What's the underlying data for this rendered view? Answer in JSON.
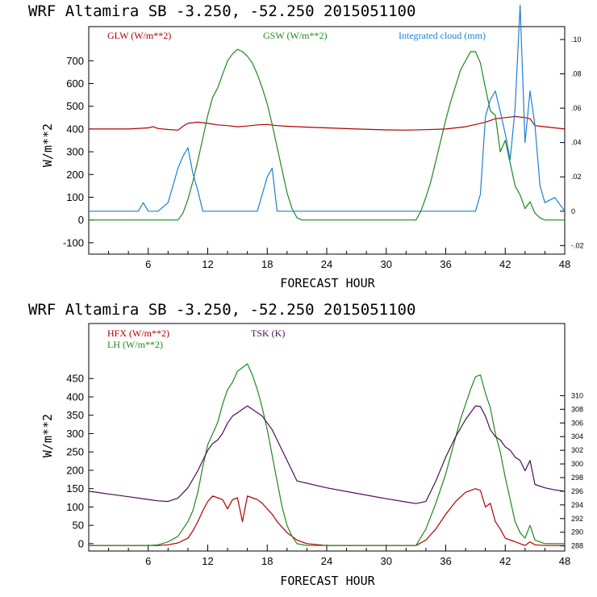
{
  "chart_data": [
    {
      "type": "line",
      "title": "WRF   Altamira  SB  -3.250, -52.250  2015051100",
      "xlabel": "FORECAST HOUR",
      "ylabel": "W/m**2",
      "xlim": [
        0,
        48
      ],
      "xticks": [
        6,
        12,
        18,
        24,
        30,
        36,
        42,
        48
      ],
      "ylim": [
        -150,
        850
      ],
      "yticks": [
        -100,
        0,
        100,
        200,
        300,
        400,
        500,
        600,
        700
      ],
      "right_axis": {
        "ylim": [
          -0.025,
          0.1075
        ],
        "ticks": [
          -0.02,
          0,
          0.02,
          0.04,
          0.06,
          0.08,
          0.1
        ],
        "tick_labels": [
          "-.02",
          "0",
          ".02",
          ".04",
          ".06",
          ".08",
          ".10"
        ]
      },
      "series": [
        {
          "name": "GLW (W/m**2)",
          "color": "#b00000",
          "axis": "left",
          "x": [
            0,
            4,
            6,
            6.5,
            7,
            8,
            9,
            9.5,
            10,
            11,
            12,
            13,
            14,
            15,
            16,
            17,
            18,
            19,
            20,
            22,
            24,
            27,
            30,
            32,
            34,
            36,
            37,
            38,
            39,
            40,
            41,
            42,
            43,
            44,
            44.5,
            45,
            46,
            47,
            48
          ],
          "y": [
            400,
            400,
            405,
            410,
            402,
            398,
            395,
            412,
            425,
            430,
            425,
            418,
            415,
            410,
            413,
            418,
            420,
            415,
            412,
            408,
            405,
            400,
            396,
            395,
            397,
            400,
            405,
            410,
            420,
            430,
            445,
            450,
            455,
            450,
            445,
            415,
            410,
            405,
            400
          ]
        },
        {
          "name": "GSW (W/m**2)",
          "color": "#20891e",
          "axis": "left",
          "x": [
            0,
            9,
            9.5,
            10,
            10.5,
            11,
            11.5,
            12,
            12.5,
            13,
            13.5,
            14,
            14.5,
            15,
            15.5,
            16,
            16.5,
            17,
            17.5,
            18,
            18.5,
            19,
            19.5,
            20,
            20.5,
            21,
            21.5,
            24,
            30,
            33,
            33.5,
            34,
            34.5,
            35,
            35.5,
            36,
            36.5,
            37,
            37.5,
            38,
            38.5,
            39,
            39.5,
            40,
            40.5,
            41,
            41.5,
            42,
            42.5,
            43,
            43.5,
            44,
            44.5,
            45,
            45.5,
            46,
            48
          ],
          "y": [
            0,
            0,
            30,
            90,
            170,
            260,
            360,
            460,
            540,
            580,
            640,
            700,
            730,
            750,
            740,
            720,
            690,
            640,
            580,
            510,
            420,
            320,
            220,
            120,
            50,
            10,
            0,
            0,
            0,
            0,
            40,
            100,
            170,
            260,
            350,
            440,
            520,
            590,
            660,
            700,
            740,
            740,
            690,
            580,
            480,
            460,
            300,
            350,
            250,
            150,
            110,
            50,
            80,
            30,
            10,
            0,
            0
          ]
        },
        {
          "name": "Integrated cloud (mm)",
          "color": "#1e80d6",
          "axis": "right",
          "x": [
            0,
            4,
            5,
            5.5,
            6,
            7,
            8,
            8.5,
            9,
            9.5,
            10,
            10.5,
            11,
            11.5,
            12,
            14,
            16,
            17,
            18,
            18.5,
            19,
            20,
            25,
            30,
            35,
            38,
            39,
            39.5,
            40,
            40.5,
            41,
            41.5,
            42,
            42.5,
            43,
            43.5,
            44,
            44.5,
            45,
            45.5,
            46,
            47,
            48
          ],
          "y": [
            0,
            0,
            0,
            0.005,
            0,
            0,
            0.005,
            0.015,
            0.025,
            0.032,
            0.037,
            0.022,
            0.012,
            0,
            0,
            0,
            0,
            0,
            0.02,
            0.025,
            0,
            0,
            0,
            0,
            0,
            0,
            0,
            0.01,
            0.055,
            0.065,
            0.07,
            0.058,
            0.045,
            0.03,
            0.06,
            0.12,
            0.04,
            0.07,
            0.05,
            0.015,
            0.005,
            0.008,
            0
          ]
        }
      ],
      "legend": [
        "GLW (W/m**2)",
        "GSW (W/m**2)",
        "Integrated cloud (mm)"
      ]
    },
    {
      "type": "line",
      "title": "WRF   Altamira  SB  -3.250, -52.250  2015051100",
      "xlabel": "FORECAST HOUR",
      "ylabel": "W/m**2",
      "xlim": [
        0,
        48
      ],
      "xticks": [
        6,
        12,
        18,
        24,
        30,
        36,
        42,
        48
      ],
      "ylim": [
        -20,
        600
      ],
      "yticks": [
        0,
        50,
        100,
        150,
        200,
        250,
        300,
        350,
        400,
        450
      ],
      "right_axis": {
        "ylim": [
          287.25,
          320.56
        ],
        "ticks": [
          288,
          290,
          292,
          294,
          296,
          298,
          300,
          302,
          304,
          306,
          308,
          310
        ],
        "tick_labels": [
          "288",
          "290",
          "292",
          "294",
          "296",
          "298",
          "300",
          "302",
          "304",
          "306",
          "308",
          "310"
        ]
      },
      "series": [
        {
          "name": "HFX (W/m**2)",
          "color": "#b00000",
          "axis": "left",
          "x": [
            0,
            7,
            8,
            9,
            10,
            10.5,
            11,
            11.5,
            12,
            12.5,
            13,
            13.5,
            14,
            14.5,
            15,
            15.5,
            16,
            16.5,
            17,
            17.5,
            18,
            18.5,
            19,
            20,
            21,
            22,
            24,
            30,
            33,
            34,
            35,
            36,
            37,
            38,
            39,
            39.5,
            40,
            40.5,
            41,
            41.5,
            42,
            43,
            44,
            44.5,
            45,
            46,
            48
          ],
          "y": [
            -5,
            -5,
            -3,
            2,
            15,
            35,
            60,
            90,
            115,
            130,
            125,
            120,
            95,
            120,
            125,
            60,
            130,
            125,
            120,
            110,
            95,
            80,
            60,
            30,
            10,
            0,
            -5,
            -5,
            -5,
            10,
            40,
            80,
            115,
            140,
            150,
            145,
            100,
            110,
            60,
            40,
            15,
            5,
            -5,
            5,
            -3,
            -5,
            -5
          ]
        },
        {
          "name": "LH (W/m**2)",
          "color": "#20891e",
          "axis": "left",
          "x": [
            0,
            6,
            7,
            8,
            9,
            10,
            10.5,
            11,
            11.5,
            12,
            12.5,
            13,
            13.5,
            14,
            14.5,
            15,
            15.5,
            16,
            16.5,
            17,
            17.5,
            18,
            18.5,
            19,
            19.5,
            20,
            20.5,
            21,
            22,
            24,
            30,
            33,
            34,
            35,
            36,
            36.5,
            37,
            37.5,
            38,
            38.5,
            39,
            39.5,
            40,
            40.5,
            41,
            41.5,
            42,
            42.5,
            43,
            43.5,
            44,
            44.5,
            45,
            46,
            48
          ],
          "y": [
            -5,
            -5,
            -3,
            5,
            20,
            60,
            90,
            140,
            210,
            270,
            300,
            330,
            380,
            420,
            440,
            470,
            480,
            490,
            460,
            420,
            370,
            310,
            240,
            170,
            100,
            50,
            20,
            0,
            -5,
            -5,
            -5,
            -5,
            40,
            110,
            190,
            240,
            290,
            340,
            380,
            420,
            455,
            460,
            410,
            370,
            300,
            250,
            180,
            120,
            60,
            30,
            15,
            50,
            10,
            0,
            0
          ]
        },
        {
          "name": "TSK (K)",
          "color": "#4b0d58",
          "axis": "right",
          "x": [
            0,
            2,
            4,
            6,
            7,
            8,
            9,
            10,
            11,
            12,
            12.5,
            13,
            13.5,
            14,
            14.5,
            15,
            15.5,
            16,
            16.5,
            17,
            17.5,
            18,
            18.5,
            19,
            19.5,
            20,
            20.5,
            21,
            24,
            27,
            30,
            33,
            34,
            35,
            36,
            37,
            38,
            39,
            39.5,
            40,
            40.5,
            41,
            41.5,
            42,
            42.5,
            43,
            43.5,
            44,
            44.5,
            45,
            46,
            47,
            48
          ],
          "y": [
            296,
            295.6,
            295.2,
            294.8,
            294.6,
            294.5,
            295,
            296.5,
            299,
            302,
            303,
            303.5,
            304.5,
            306,
            307,
            307.5,
            308,
            308.5,
            308,
            307.5,
            307,
            306,
            305,
            303.5,
            302,
            300.5,
            299,
            297.5,
            296.5,
            295.7,
            294.9,
            294.2,
            294.5,
            297.5,
            301,
            304,
            306.5,
            308.5,
            308.4,
            307,
            305,
            304,
            303.5,
            302.5,
            302,
            301,
            300.5,
            299,
            300.5,
            297,
            296.5,
            296.2,
            296
          ]
        }
      ],
      "legend": [
        "HFX (W/m**2)",
        "LH (W/m**2)",
        "TSK (K)"
      ]
    }
  ]
}
